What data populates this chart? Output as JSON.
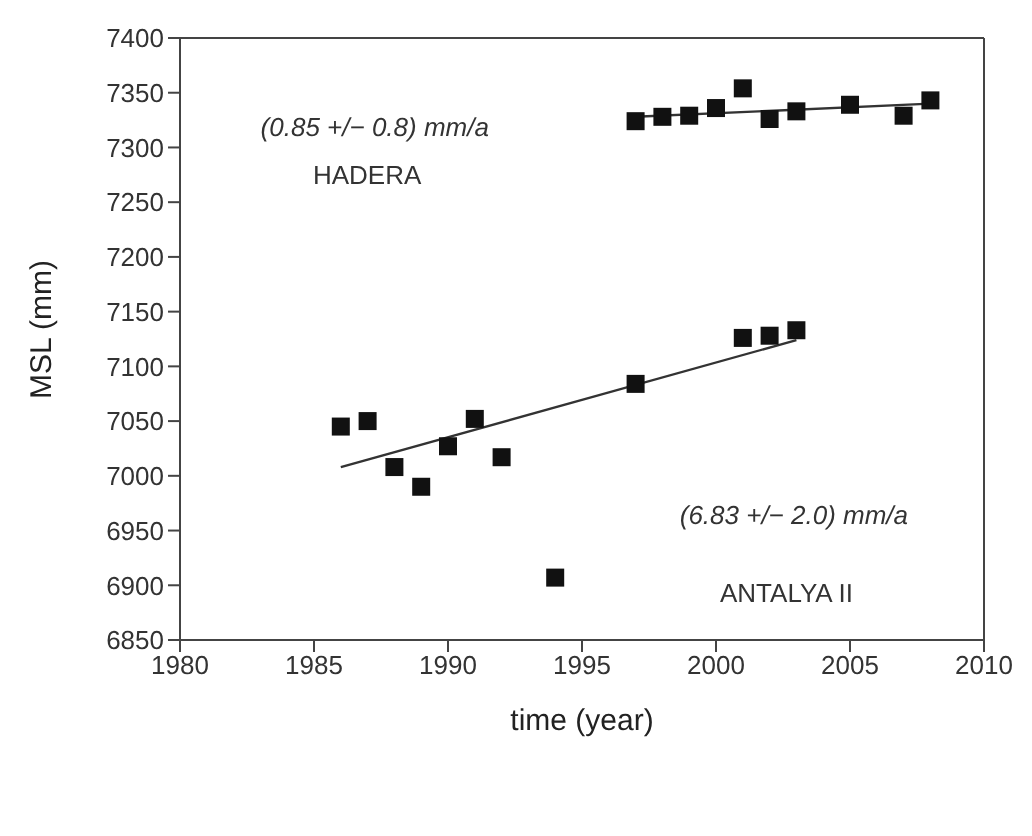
{
  "chart_data": {
    "type": "scatter",
    "xlabel": "time (year)",
    "ylabel": "MSL (mm)",
    "xlim": [
      1980,
      2010
    ],
    "xticks": [
      1980,
      1985,
      1990,
      1995,
      2000,
      2005,
      2010
    ],
    "ylim": [
      6850,
      7400
    ],
    "yticks": [
      6850,
      6900,
      6950,
      7000,
      7050,
      7100,
      7150,
      7200,
      7250,
      7300,
      7350,
      7400
    ],
    "grid": false,
    "legend": false,
    "annotations": [
      "(0.85 +/− 0.8) mm/a",
      "HADERA",
      "(6.83 +/− 2.0) mm/a",
      "ANTALYA II"
    ],
    "series": [
      {
        "marker": "square",
        "color": "#111111",
        "x": [
          1997,
          1998,
          1999,
          2000,
          2001,
          2002,
          2003,
          2005,
          2007,
          2008
        ],
        "values": [
          7324,
          7328,
          7329,
          7336,
          7354,
          7326,
          7333,
          7339,
          7329,
          7343
        ]
      },
      {
        "type": "line",
        "color": "#333333",
        "x": [
          1997,
          2008
        ],
        "values": [
          7328,
          7340
        ]
      },
      {
        "marker": "square",
        "color": "#111111",
        "x": [
          1986,
          1987,
          1988,
          1989,
          1990,
          1991,
          1992,
          1994,
          1997,
          2001,
          2002,
          2003
        ],
        "values": [
          7045,
          7050,
          7008,
          6990,
          7027,
          7052,
          7017,
          6907,
          7084,
          7126,
          7128,
          7133
        ]
      },
      {
        "type": "line",
        "color": "#333333",
        "x": [
          1986,
          2003
        ],
        "values": [
          7008,
          7124
        ]
      }
    ]
  }
}
